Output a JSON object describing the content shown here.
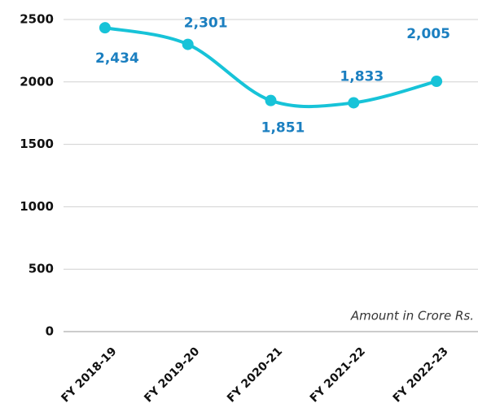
{
  "chart_data": {
    "type": "line",
    "categories": [
      "FY 2018-19",
      "FY 2019-20",
      "FY 2020-21",
      "FY 2021-22",
      "FY 2022-23"
    ],
    "values": [
      2434,
      2301,
      1851,
      1833,
      2005
    ],
    "value_labels": [
      "2,434",
      "2,301",
      "1,851",
      "1,833",
      "2,005"
    ],
    "color": "#17c3d8",
    "label_color": "#1b7fc0",
    "ylim": [
      0,
      2500
    ],
    "yticks": [
      0,
      500,
      1000,
      1500,
      2000,
      2500
    ],
    "grid": true,
    "annotation": "Amount in Crore Rs."
  }
}
